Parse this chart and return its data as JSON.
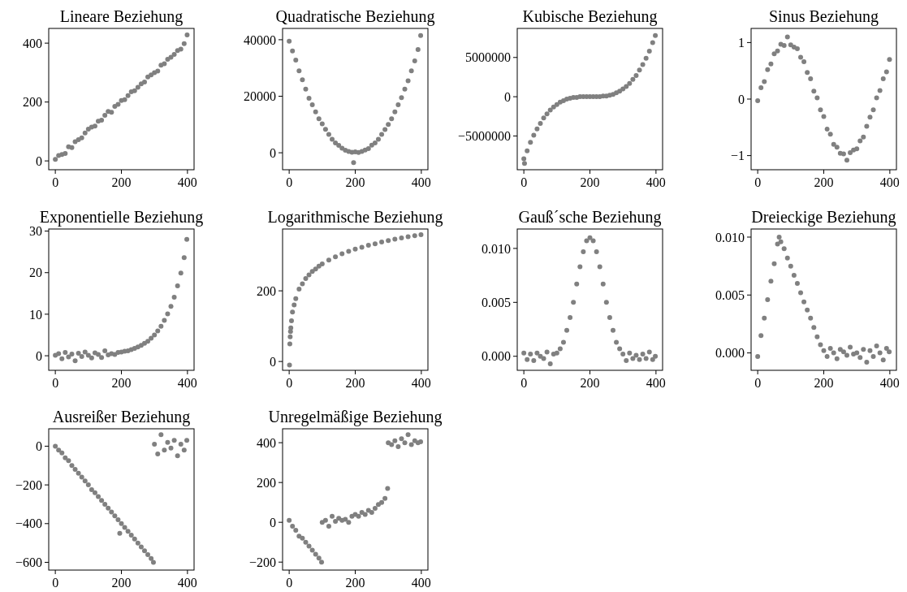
{
  "chart_data": [
    {
      "type": "scatter",
      "title": "Lineare Beziehung",
      "marker": "circle",
      "xlim": [
        -20,
        420
      ],
      "ylim": [
        -30,
        450
      ],
      "xticks": [
        0,
        200,
        400
      ],
      "yticks": [
        0,
        200,
        400
      ],
      "series": [
        {
          "color": "#808080",
          "x": [
            0,
            10,
            20,
            30,
            40,
            50,
            60,
            70,
            80,
            90,
            100,
            110,
            120,
            130,
            140,
            150,
            160,
            170,
            180,
            190,
            200,
            210,
            220,
            230,
            240,
            250,
            260,
            270,
            280,
            290,
            300,
            310,
            320,
            330,
            340,
            350,
            360,
            370,
            380,
            390,
            399
          ],
          "values": [
            5,
            18,
            22,
            25,
            48,
            45,
            65,
            72,
            78,
            95,
            108,
            115,
            118,
            135,
            138,
            155,
            168,
            165,
            185,
            192,
            205,
            208,
            222,
            235,
            238,
            250,
            262,
            268,
            285,
            292,
            300,
            305,
            325,
            330,
            345,
            352,
            362,
            375,
            380,
            398,
            428
          ]
        }
      ]
    },
    {
      "type": "scatter",
      "title": "Quadratische Beziehung",
      "marker": "circle",
      "xlim": [
        -20,
        420
      ],
      "ylim": [
        -6000,
        44000
      ],
      "xticks": [
        0,
        200,
        400
      ],
      "yticks": [
        0,
        20000,
        40000
      ],
      "series": [
        {
          "color": "#808080",
          "x": [
            0,
            10,
            20,
            30,
            40,
            50,
            60,
            70,
            80,
            90,
            100,
            110,
            120,
            130,
            140,
            150,
            160,
            170,
            180,
            190,
            195,
            200,
            210,
            220,
            230,
            240,
            250,
            260,
            270,
            280,
            290,
            300,
            310,
            320,
            330,
            340,
            350,
            360,
            370,
            380,
            390,
            398
          ],
          "values": [
            39500,
            36000,
            32800,
            29000,
            25800,
            22500,
            19300,
            17000,
            14500,
            12000,
            10200,
            8300,
            6500,
            4800,
            3500,
            2600,
            1600,
            900,
            500,
            200,
            -3500,
            300,
            100,
            500,
            1000,
            1500,
            2700,
            3500,
            4800,
            6500,
            8200,
            10000,
            12000,
            14500,
            17000,
            19500,
            22500,
            25500,
            29000,
            32500,
            36500,
            41500
          ]
        }
      ]
    },
    {
      "type": "scatter",
      "title": "Kubische Beziehung",
      "marker": "circle",
      "xlim": [
        -20,
        420
      ],
      "ylim": [
        -9300000,
        8700000
      ],
      "xticks": [
        0,
        200,
        400
      ],
      "yticks": [
        {
          "value": -5000000,
          "label": "−5000000"
        },
        0,
        5000000
      ],
      "series": [
        {
          "color": "#808080",
          "x": [
            0,
            2,
            10,
            20,
            30,
            40,
            50,
            60,
            70,
            80,
            90,
            100,
            110,
            120,
            130,
            140,
            150,
            160,
            170,
            180,
            190,
            200,
            210,
            220,
            230,
            240,
            250,
            260,
            270,
            280,
            290,
            300,
            310,
            320,
            330,
            340,
            350,
            360,
            370,
            380,
            390,
            398
          ],
          "values": [
            -7900000,
            -8500000,
            -6900000,
            -5800000,
            -4900000,
            -4100000,
            -3400000,
            -2700000,
            -2200000,
            -1700000,
            -1300000,
            -1000000,
            -700000,
            -500000,
            -300000,
            -200000,
            -100000,
            -100000,
            0,
            0,
            0,
            0,
            0,
            0,
            0,
            100000,
            100000,
            200000,
            300000,
            500000,
            700000,
            1000000,
            1300000,
            1700000,
            2200000,
            2700000,
            3400000,
            4100000,
            4900000,
            5800000,
            6900000,
            7800000
          ]
        }
      ]
    },
    {
      "type": "scatter",
      "title": "Sinus Beziehung",
      "marker": "circle",
      "xlim": [
        -20,
        420
      ],
      "ylim": [
        -1.25,
        1.25
      ],
      "xticks": [
        0,
        200,
        400
      ],
      "yticks": [
        {
          "value": -1,
          "label": "−1"
        },
        0,
        1
      ],
      "series": [
        {
          "color": "#808080",
          "x": [
            0,
            10,
            20,
            30,
            40,
            50,
            60,
            70,
            80,
            90,
            100,
            110,
            120,
            130,
            140,
            150,
            160,
            170,
            180,
            190,
            200,
            210,
            220,
            230,
            240,
            250,
            260,
            270,
            280,
            290,
            300,
            310,
            320,
            330,
            340,
            350,
            360,
            370,
            380,
            390,
            399
          ],
          "values": [
            -0.03,
            0.2,
            0.31,
            0.52,
            0.62,
            0.8,
            0.85,
            0.97,
            0.95,
            1.1,
            0.96,
            0.92,
            0.89,
            0.74,
            0.66,
            0.47,
            0.36,
            0.14,
            0.02,
            -0.19,
            -0.31,
            -0.53,
            -0.62,
            -0.8,
            -0.85,
            -0.96,
            -0.97,
            -1.08,
            -0.95,
            -0.9,
            -0.88,
            -0.74,
            -0.67,
            -0.48,
            -0.32,
            -0.19,
            0.02,
            0.15,
            0.36,
            0.48,
            0.7
          ]
        }
      ]
    },
    {
      "type": "scatter",
      "title": "Exponentielle Beziehung",
      "marker": "circle",
      "xlim": [
        -20,
        420
      ],
      "ylim": [
        -3.5,
        30.5
      ],
      "xticks": [
        0,
        200,
        400
      ],
      "yticks": [
        0,
        10,
        20,
        30
      ],
      "series": [
        {
          "color": "#808080",
          "x": [
            0,
            10,
            20,
            30,
            40,
            50,
            60,
            70,
            80,
            90,
            100,
            110,
            120,
            130,
            140,
            150,
            160,
            170,
            180,
            190,
            200,
            210,
            220,
            230,
            240,
            250,
            260,
            270,
            280,
            290,
            300,
            310,
            320,
            330,
            340,
            350,
            360,
            370,
            380,
            390,
            398
          ],
          "values": [
            0.1,
            0.5,
            -0.7,
            0.8,
            -0.3,
            0.4,
            -1.2,
            0.6,
            -0.2,
            0.9,
            0.1,
            -0.5,
            0.7,
            0.3,
            -0.4,
            1.2,
            0.2,
            0.5,
            0.3,
            0.8,
            0.9,
            1.1,
            1.2,
            1.5,
            1.8,
            2.1,
            2.5,
            3.0,
            3.5,
            4.2,
            5.0,
            6.0,
            7.1,
            8.5,
            10.1,
            11.9,
            14.1,
            16.8,
            19.9,
            23.6,
            28
          ]
        }
      ]
    },
    {
      "type": "scatter",
      "title": "Logarithmische Beziehung",
      "marker": "circle",
      "xlim": [
        -20,
        420
      ],
      "ylim": [
        -25,
        375
      ],
      "xticks": [
        0,
        200,
        400
      ],
      "yticks": [
        0,
        200
      ],
      "series": [
        {
          "color": "#808080",
          "x": [
            1,
            2,
            3,
            4,
            5,
            7,
            10,
            15,
            20,
            30,
            40,
            50,
            60,
            70,
            80,
            90,
            100,
            120,
            140,
            160,
            180,
            200,
            220,
            240,
            260,
            280,
            300,
            320,
            340,
            360,
            380,
            399
          ],
          "values": [
            -10,
            50,
            70,
            85,
            95,
            115,
            140,
            160,
            178,
            205,
            220,
            235,
            245,
            255,
            262,
            270,
            276,
            287,
            296,
            305,
            312,
            318,
            323,
            329,
            333,
            338,
            342,
            346,
            350,
            353,
            356,
            359
          ]
        }
      ]
    },
    {
      "type": "scatter",
      "title": "Gauß´sche Beziehung",
      "marker": "circle",
      "xlim": [
        -20,
        420
      ],
      "ylim": [
        -0.0013,
        0.0118
      ],
      "xticks": [
        0,
        200,
        400
      ],
      "yticks": [
        {
          "value": 0,
          "label": "0.000"
        },
        {
          "value": 0.005,
          "label": "0.005"
        },
        {
          "value": 0.01,
          "label": "0.010"
        }
      ],
      "series": [
        {
          "color": "#808080",
          "x": [
            0,
            10,
            20,
            30,
            40,
            50,
            60,
            70,
            80,
            90,
            100,
            110,
            120,
            130,
            140,
            150,
            160,
            170,
            180,
            190,
            200,
            210,
            220,
            230,
            240,
            250,
            260,
            270,
            280,
            290,
            300,
            310,
            320,
            330,
            340,
            350,
            360,
            370,
            380,
            390,
            398
          ],
          "values": [
            0.0003,
            -0.0003,
            0.0002,
            -0.0004,
            0.0003,
            0,
            -0.0002,
            0.0004,
            -0.0007,
            0.0002,
            0.0003,
            0.0007,
            0.0013,
            0.0024,
            0.0036,
            0.005,
            0.0067,
            0.0083,
            0.0097,
            0.0107,
            0.011,
            0.0107,
            0.0097,
            0.0083,
            0.0067,
            0.005,
            0.0036,
            0.0024,
            0.0013,
            0.0007,
            0.0002,
            -0.0004,
            0.0003,
            -0.0002,
            0.0001,
            -0.0003,
            0.0002,
            -0.0002,
            0.0004,
            -0.0003,
            0
          ]
        }
      ]
    },
    {
      "type": "scatter",
      "title": "Dreieckige Beziehung",
      "marker": "circle",
      "xlim": [
        -20,
        420
      ],
      "ylim": [
        -0.0015,
        0.0107
      ],
      "xticks": [
        0,
        200,
        400
      ],
      "yticks": [
        {
          "value": 0,
          "label": "0.000"
        },
        {
          "value": 0.005,
          "label": "0.005"
        },
        {
          "value": 0.01,
          "label": "0.010"
        }
      ],
      "series": [
        {
          "color": "#808080",
          "x": [
            0,
            10,
            20,
            30,
            40,
            50,
            60,
            65,
            70,
            80,
            90,
            100,
            110,
            120,
            130,
            140,
            150,
            160,
            170,
            180,
            190,
            200,
            210,
            220,
            230,
            240,
            250,
            260,
            270,
            280,
            290,
            300,
            310,
            320,
            330,
            340,
            350,
            360,
            370,
            380,
            390,
            398
          ],
          "values": [
            -0.0003,
            0.0015,
            0.003,
            0.0046,
            0.0062,
            0.0077,
            0.0094,
            0.01,
            0.0096,
            0.009,
            0.0082,
            0.0075,
            0.0067,
            0.006,
            0.0052,
            0.0044,
            0.0037,
            0.003,
            0.0022,
            0.0014,
            0.0007,
            0.0002,
            -0.0003,
            0.0004,
            0,
            -0.0005,
            0.0003,
            0.0001,
            -0.0002,
            0.0005,
            -0.0001,
            0,
            -0.0004,
            0.0003,
            -0.0008,
            0.0002,
            -0.0003,
            0.0006,
            0,
            -0.0006,
            0.0004,
            0.0001
          ]
        }
      ]
    },
    {
      "type": "scatter",
      "title": "Ausreißer Beziehung",
      "marker": "circle",
      "xlim": [
        -20,
        420
      ],
      "ylim": [
        -640,
        90
      ],
      "xticks": [
        0,
        200,
        400
      ],
      "yticks": [
        {
          "value": -600,
          "label": "−600"
        },
        {
          "value": -400,
          "label": "−400"
        },
        {
          "value": -200,
          "label": "−200"
        },
        0
      ],
      "series": [
        {
          "color": "#808080",
          "x": [
            0,
            10,
            20,
            30,
            40,
            50,
            60,
            70,
            80,
            90,
            100,
            110,
            120,
            130,
            140,
            150,
            160,
            170,
            180,
            190,
            195,
            200,
            210,
            220,
            230,
            240,
            250,
            260,
            270,
            280,
            290,
            297,
            300,
            310,
            320,
            330,
            340,
            350,
            360,
            370,
            380,
            390,
            398
          ],
          "values": [
            0,
            -20,
            -35,
            -60,
            -75,
            -100,
            -120,
            -140,
            -160,
            -180,
            -200,
            -225,
            -240,
            -260,
            -280,
            -300,
            -320,
            -340,
            -360,
            -380,
            -450,
            -400,
            -420,
            -440,
            -460,
            -480,
            -500,
            -520,
            -540,
            -560,
            -580,
            -600,
            10,
            -40,
            60,
            -20,
            20,
            -10,
            30,
            -50,
            10,
            -20,
            30
          ]
        }
      ]
    },
    {
      "type": "scatter",
      "title": "Unregelmäßige Beziehung",
      "marker": "circle",
      "xlim": [
        -20,
        420
      ],
      "ylim": [
        -240,
        470
      ],
      "xticks": [
        0,
        200,
        400
      ],
      "yticks": [
        {
          "value": -200,
          "label": "−200"
        },
        0,
        200,
        400
      ],
      "series": [
        {
          "color": "#808080",
          "x": [
            0,
            10,
            20,
            30,
            40,
            50,
            60,
            70,
            80,
            90,
            98,
            100,
            110,
            120,
            130,
            140,
            150,
            160,
            170,
            180,
            190,
            200,
            210,
            220,
            230,
            240,
            250,
            260,
            270,
            280,
            290,
            298,
            300,
            310,
            320,
            330,
            340,
            350,
            360,
            370,
            380,
            390,
            398
          ],
          "values": [
            10,
            -20,
            -40,
            -70,
            -80,
            -100,
            -120,
            -140,
            -160,
            -180,
            -200,
            0,
            10,
            -20,
            30,
            5,
            20,
            10,
            15,
            0,
            30,
            40,
            30,
            50,
            40,
            60,
            50,
            70,
            90,
            100,
            120,
            170,
            400,
            390,
            410,
            380,
            420,
            400,
            440,
            390,
            410,
            400,
            405
          ]
        }
      ]
    }
  ]
}
